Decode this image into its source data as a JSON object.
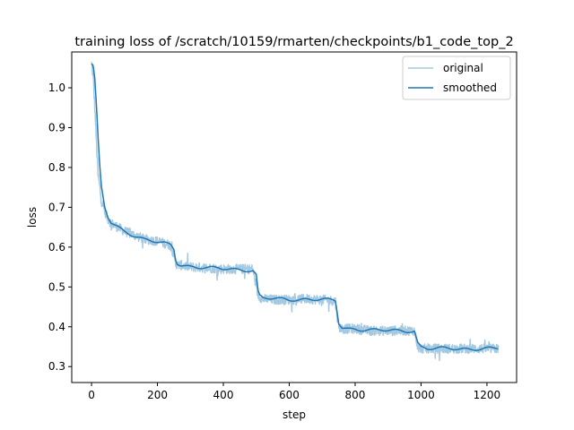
{
  "chart_data": {
    "type": "line",
    "title": "training loss of /scratch/10159/rmarten/checkpoints/b1_code_top_2",
    "xlabel": "step",
    "ylabel": "loss",
    "xlim": [
      -60,
      1290
    ],
    "ylim": [
      0.26,
      1.09
    ],
    "xticks": [
      0,
      200,
      400,
      600,
      800,
      1000,
      1200
    ],
    "yticks": [
      0.3,
      0.4,
      0.5,
      0.6,
      0.7,
      0.8,
      0.9,
      1.0
    ],
    "xtick_labels": [
      "0",
      "200",
      "400",
      "600",
      "800",
      "1000",
      "1200"
    ],
    "ytick_labels": [
      "0.3",
      "0.4",
      "0.5",
      "0.6",
      "0.7",
      "0.8",
      "0.9",
      "1.0"
    ],
    "grid": false,
    "legend_position": "top-right",
    "series": [
      {
        "name": "original",
        "color": "#1f77b4",
        "opacity": 0.4,
        "style": "noisy",
        "x": [
          0,
          5,
          10,
          15,
          20,
          30,
          40,
          50,
          60,
          80,
          100,
          130,
          160,
          200,
          240,
          250,
          255,
          260,
          270,
          300,
          350,
          400,
          450,
          490,
          500,
          505,
          510,
          520,
          550,
          600,
          650,
          700,
          740,
          745,
          750,
          760,
          780,
          800,
          850,
          900,
          950,
          980,
          985,
          990,
          1000,
          1020,
          1050,
          1100,
          1150,
          1200,
          1235
        ],
        "y": [
          1.06,
          1.03,
          0.95,
          0.86,
          0.78,
          0.72,
          0.69,
          0.67,
          0.66,
          0.65,
          0.64,
          0.63,
          0.62,
          0.615,
          0.605,
          0.58,
          0.56,
          0.555,
          0.555,
          0.55,
          0.548,
          0.545,
          0.545,
          0.545,
          0.5,
          0.48,
          0.475,
          0.47,
          0.468,
          0.468,
          0.47,
          0.468,
          0.465,
          0.43,
          0.4,
          0.395,
          0.395,
          0.395,
          0.39,
          0.39,
          0.39,
          0.39,
          0.37,
          0.35,
          0.345,
          0.345,
          0.345,
          0.345,
          0.345,
          0.345,
          0.345
        ]
      },
      {
        "name": "smoothed",
        "color": "#1f77b4",
        "opacity": 1.0,
        "style": "smooth",
        "x": [
          0,
          5,
          10,
          15,
          20,
          25,
          30,
          40,
          50,
          60,
          70,
          80,
          100,
          130,
          160,
          200,
          240,
          250,
          255,
          260,
          270,
          300,
          350,
          400,
          450,
          490,
          500,
          505,
          510,
          520,
          550,
          600,
          650,
          700,
          740,
          745,
          750,
          760,
          780,
          800,
          850,
          900,
          950,
          980,
          985,
          990,
          1000,
          1020,
          1050,
          1100,
          1150,
          1200,
          1235
        ],
        "y": [
          1.06,
          1.055,
          1.02,
          0.95,
          0.87,
          0.8,
          0.75,
          0.7,
          0.675,
          0.66,
          0.655,
          0.65,
          0.64,
          0.63,
          0.62,
          0.612,
          0.605,
          0.595,
          0.57,
          0.56,
          0.556,
          0.552,
          0.548,
          0.545,
          0.544,
          0.542,
          0.53,
          0.49,
          0.478,
          0.472,
          0.47,
          0.468,
          0.47,
          0.468,
          0.465,
          0.44,
          0.41,
          0.398,
          0.395,
          0.395,
          0.392,
          0.39,
          0.39,
          0.39,
          0.375,
          0.36,
          0.35,
          0.345,
          0.345,
          0.345,
          0.345,
          0.345,
          0.345
        ]
      }
    ]
  }
}
